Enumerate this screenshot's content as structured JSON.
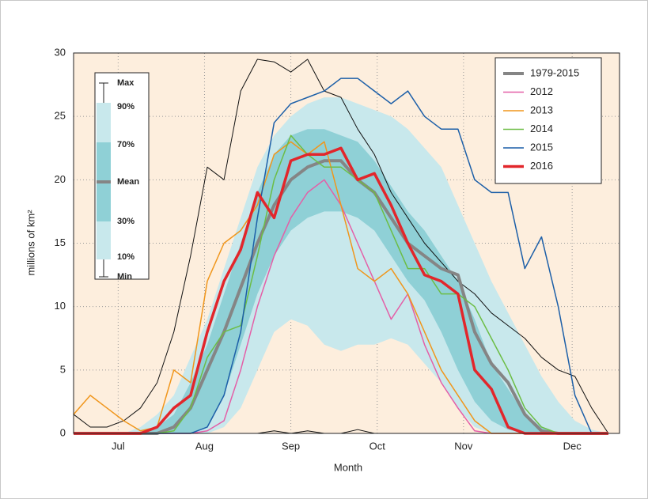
{
  "chart_data": {
    "type": "line",
    "x_label": "Month",
    "y_label": "millions of km²",
    "x": [
      180,
      186,
      192,
      198,
      204,
      210,
      216,
      222,
      228,
      234,
      240,
      246,
      252,
      258,
      264,
      270,
      276,
      282,
      288,
      294,
      300,
      306,
      312,
      318,
      324,
      330,
      336,
      342,
      348,
      354,
      360,
      366,
      372
    ],
    "xlim": [
      180,
      376
    ],
    "ylim": [
      0,
      30
    ],
    "xticks": [
      {
        "value": 196,
        "label": "Jul"
      },
      {
        "value": 227,
        "label": "Aug"
      },
      {
        "value": 258,
        "label": "Sep"
      },
      {
        "value": 289,
        "label": "Oct"
      },
      {
        "value": 320,
        "label": "Nov"
      },
      {
        "value": 359,
        "label": "Dec"
      }
    ],
    "yticks": [
      0,
      5,
      10,
      15,
      20,
      25,
      30
    ],
    "grid": true,
    "legend": "upper right",
    "band_key": {
      "max": "Max",
      "p90": "90%",
      "p70": "70%",
      "mean": "Mean",
      "p30": "30%",
      "p10": "10%",
      "min": "Min"
    },
    "percentiles": {
      "max": [
        1.5,
        0.5,
        0.5,
        1,
        2,
        4,
        8,
        14,
        21,
        20,
        27,
        29.5,
        29.3,
        28.5,
        29.5,
        27,
        26.5,
        24,
        22,
        19,
        17,
        15,
        13.5,
        12,
        11,
        9.5,
        8.5,
        7.5,
        6,
        5,
        4.5,
        2,
        0
      ],
      "p90": [
        0,
        0,
        0,
        0,
        0.5,
        1.5,
        3,
        6,
        9,
        13,
        17,
        21,
        23.5,
        25,
        26,
        26.5,
        26.5,
        26,
        25.5,
        25,
        24,
        22.5,
        21,
        18,
        15,
        12,
        9.5,
        7,
        4.5,
        2.5,
        1,
        0.3,
        0
      ],
      "p70": [
        0,
        0,
        0,
        0,
        0,
        0.5,
        1.5,
        4,
        7,
        11,
        15,
        19,
        22,
        23.5,
        24,
        24,
        23.5,
        23,
        21.5,
        19.5,
        17.5,
        16,
        14,
        12,
        9,
        5.5,
        3.5,
        1.5,
        0.5,
        0,
        0,
        0,
        0
      ],
      "p30": [
        0,
        0,
        0,
        0,
        0,
        0,
        0,
        0,
        0.5,
        3,
        7,
        11,
        14,
        16,
        17,
        17.5,
        17.5,
        17,
        16,
        14,
        12,
        10.5,
        8,
        5,
        2.5,
        1,
        0.3,
        0,
        0,
        0,
        0,
        0,
        0
      ],
      "p10": [
        0,
        0,
        0,
        0,
        0,
        0,
        0,
        0,
        0,
        0.5,
        2,
        5,
        8,
        9,
        8.5,
        7,
        6.5,
        7,
        7,
        7.5,
        7,
        5.5,
        4,
        2,
        0.5,
        0,
        0,
        0,
        0,
        0,
        0,
        0,
        0
      ],
      "min": [
        0,
        0,
        0,
        0,
        0,
        0,
        0,
        0,
        0,
        0,
        0,
        0,
        0.2,
        0,
        0.2,
        0,
        0,
        0.3,
        0,
        0,
        0,
        0,
        0,
        0,
        0,
        0,
        0,
        0,
        0,
        0,
        0,
        0,
        0
      ]
    },
    "series": [
      {
        "name": "1979-2015",
        "color": "#858585",
        "width": 4,
        "values": [
          0,
          0,
          0,
          0,
          0,
          0,
          0.5,
          2,
          5,
          8,
          11.5,
          15,
          18,
          20,
          21,
          21.5,
          21.5,
          20,
          19,
          17,
          15,
          14,
          13,
          12.5,
          8,
          5.5,
          4,
          1.5,
          0.2,
          0,
          0,
          0,
          0
        ]
      },
      {
        "name": "2012",
        "color": "#e45fa7",
        "width": 1.5,
        "values": [
          0,
          0,
          0,
          0,
          0,
          0,
          0,
          0,
          0.2,
          1,
          5,
          10,
          14,
          17,
          19,
          20,
          18,
          15,
          12,
          9,
          11,
          7,
          4,
          2,
          0.2,
          0,
          0,
          0,
          0,
          0,
          0,
          0,
          0
        ]
      },
      {
        "name": "2013",
        "color": "#f0961c",
        "width": 1.5,
        "values": [
          1.5,
          3,
          2,
          1,
          0.2,
          0.5,
          5,
          4,
          12,
          15,
          16,
          18,
          22,
          23,
          22,
          23,
          18,
          13,
          12,
          13,
          11,
          8,
          5,
          3,
          1,
          0,
          0,
          0,
          0,
          0,
          0,
          0,
          0
        ]
      },
      {
        "name": "2014",
        "color": "#6cbd45",
        "width": 1.5,
        "values": [
          0,
          0,
          0,
          0,
          0,
          0,
          0.2,
          2,
          6,
          8,
          8.5,
          14,
          20,
          23.5,
          22,
          21,
          21,
          20,
          19,
          16,
          13,
          13,
          11,
          11,
          10,
          7.5,
          5,
          2,
          0.5,
          0,
          0,
          0,
          0
        ]
      },
      {
        "name": "2015",
        "color": "#1c5fa8",
        "width": 1.5,
        "values": [
          0,
          0,
          0,
          0,
          0,
          0,
          0,
          0,
          0.5,
          3,
          8,
          17,
          24.5,
          26,
          26.5,
          27,
          28,
          28,
          27,
          26,
          27,
          25,
          24,
          24,
          20,
          19,
          19,
          13,
          15.5,
          10,
          3,
          0,
          0
        ]
      },
      {
        "name": "2016",
        "color": "#e2262b",
        "width": 3.5,
        "values": [
          0,
          0,
          0,
          0,
          0,
          0.5,
          2,
          3,
          8,
          12,
          14.5,
          19,
          17,
          21.5,
          22,
          22,
          22.5,
          20,
          20.5,
          18,
          15,
          12.5,
          12,
          11,
          5,
          3.5,
          0.5,
          0,
          0,
          0,
          0,
          0,
          0
        ]
      }
    ]
  }
}
